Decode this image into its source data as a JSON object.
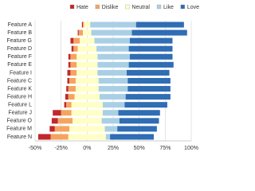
{
  "chart_data": {
    "type": "diverging-bar",
    "categories": [
      "Feature A",
      "Feature B",
      "Feature G",
      "Feature D",
      "Feature F",
      "Feature E",
      "Feature I",
      "Feature C",
      "Feature K",
      "Feature H",
      "Feature L",
      "Feature J",
      "Feature O",
      "Feature M",
      "Feature N"
    ],
    "series": [
      {
        "name": "Hate",
        "color": "#c1272d",
        "values": [
          1,
          1,
          3,
          2,
          2,
          2,
          3,
          2,
          2,
          3,
          2,
          8,
          6,
          5,
          12
        ]
      },
      {
        "name": "Dislike",
        "color": "#f4a460",
        "values": [
          1,
          4,
          6,
          4,
          6,
          6,
          6,
          6,
          7,
          6,
          5,
          10,
          14,
          14,
          17
        ]
      },
      {
        "name": "Neutral",
        "color": "#ffffc4",
        "values": [
          6,
          8,
          14,
          18,
          20,
          20,
          20,
          22,
          22,
          24,
          30,
          30,
          28,
          34,
          36
        ]
      },
      {
        "name": "Like",
        "color": "#a9cfe5",
        "values": [
          44,
          39,
          34,
          31,
          31,
          30,
          28,
          28,
          28,
          25,
          21,
          15,
          17,
          12,
          4
        ]
      },
      {
        "name": "Love",
        "color": "#2f6db4",
        "values": [
          46,
          53,
          41,
          42,
          41,
          43,
          41,
          41,
          41,
          43,
          41,
          40,
          38,
          38,
          42
        ]
      }
    ],
    "xlim": [
      -50,
      100
    ],
    "xticks": [
      {
        "value": -50,
        "label": "-50%"
      },
      {
        "value": -25,
        "label": "-25%"
      },
      {
        "value": 0,
        "label": "0%"
      },
      {
        "value": 25,
        "label": "25%"
      },
      {
        "value": 50,
        "label": "50%"
      },
      {
        "value": 75,
        "label": "75%"
      },
      {
        "value": 100,
        "label": "100%"
      }
    ],
    "grid": true,
    "legend": "top"
  }
}
